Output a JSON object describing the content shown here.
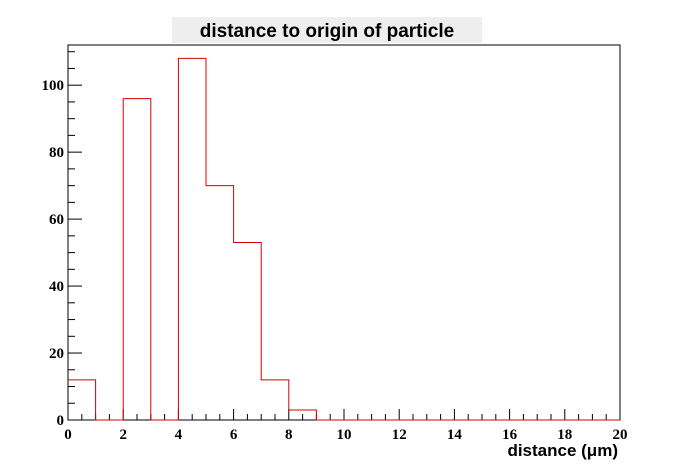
{
  "chart_data": {
    "type": "bar",
    "histogram": true,
    "title": "distance to origin of particle",
    "xlabel": "distance (μm)",
    "ylabel": "",
    "xlim": [
      0,
      20
    ],
    "ylim": [
      0,
      112
    ],
    "bin_edges": [
      0,
      1,
      2,
      3,
      4,
      5,
      6,
      7,
      8,
      9,
      10,
      11,
      12,
      13,
      14,
      15,
      16,
      17,
      18,
      19,
      20
    ],
    "values": [
      12,
      0,
      96,
      0,
      108,
      70,
      53,
      12,
      3,
      0,
      0,
      0,
      0,
      0,
      0,
      0,
      0,
      0,
      0,
      0
    ],
    "x_ticks": [
      0,
      2,
      4,
      6,
      8,
      10,
      12,
      14,
      16,
      18,
      20
    ],
    "x_tick_labels": [
      "0",
      "2",
      "4",
      "6",
      "8",
      "10",
      "12",
      "14",
      "16",
      "18",
      "20"
    ],
    "y_ticks": [
      0,
      20,
      40,
      60,
      80,
      100
    ],
    "y_tick_labels": [
      "0",
      "20",
      "40",
      "60",
      "80",
      "100"
    ],
    "grid": false,
    "legend": "none",
    "colors": {
      "histogram_line": "#d40000",
      "axis": "#000000",
      "title_box": "#eeeeee"
    }
  }
}
